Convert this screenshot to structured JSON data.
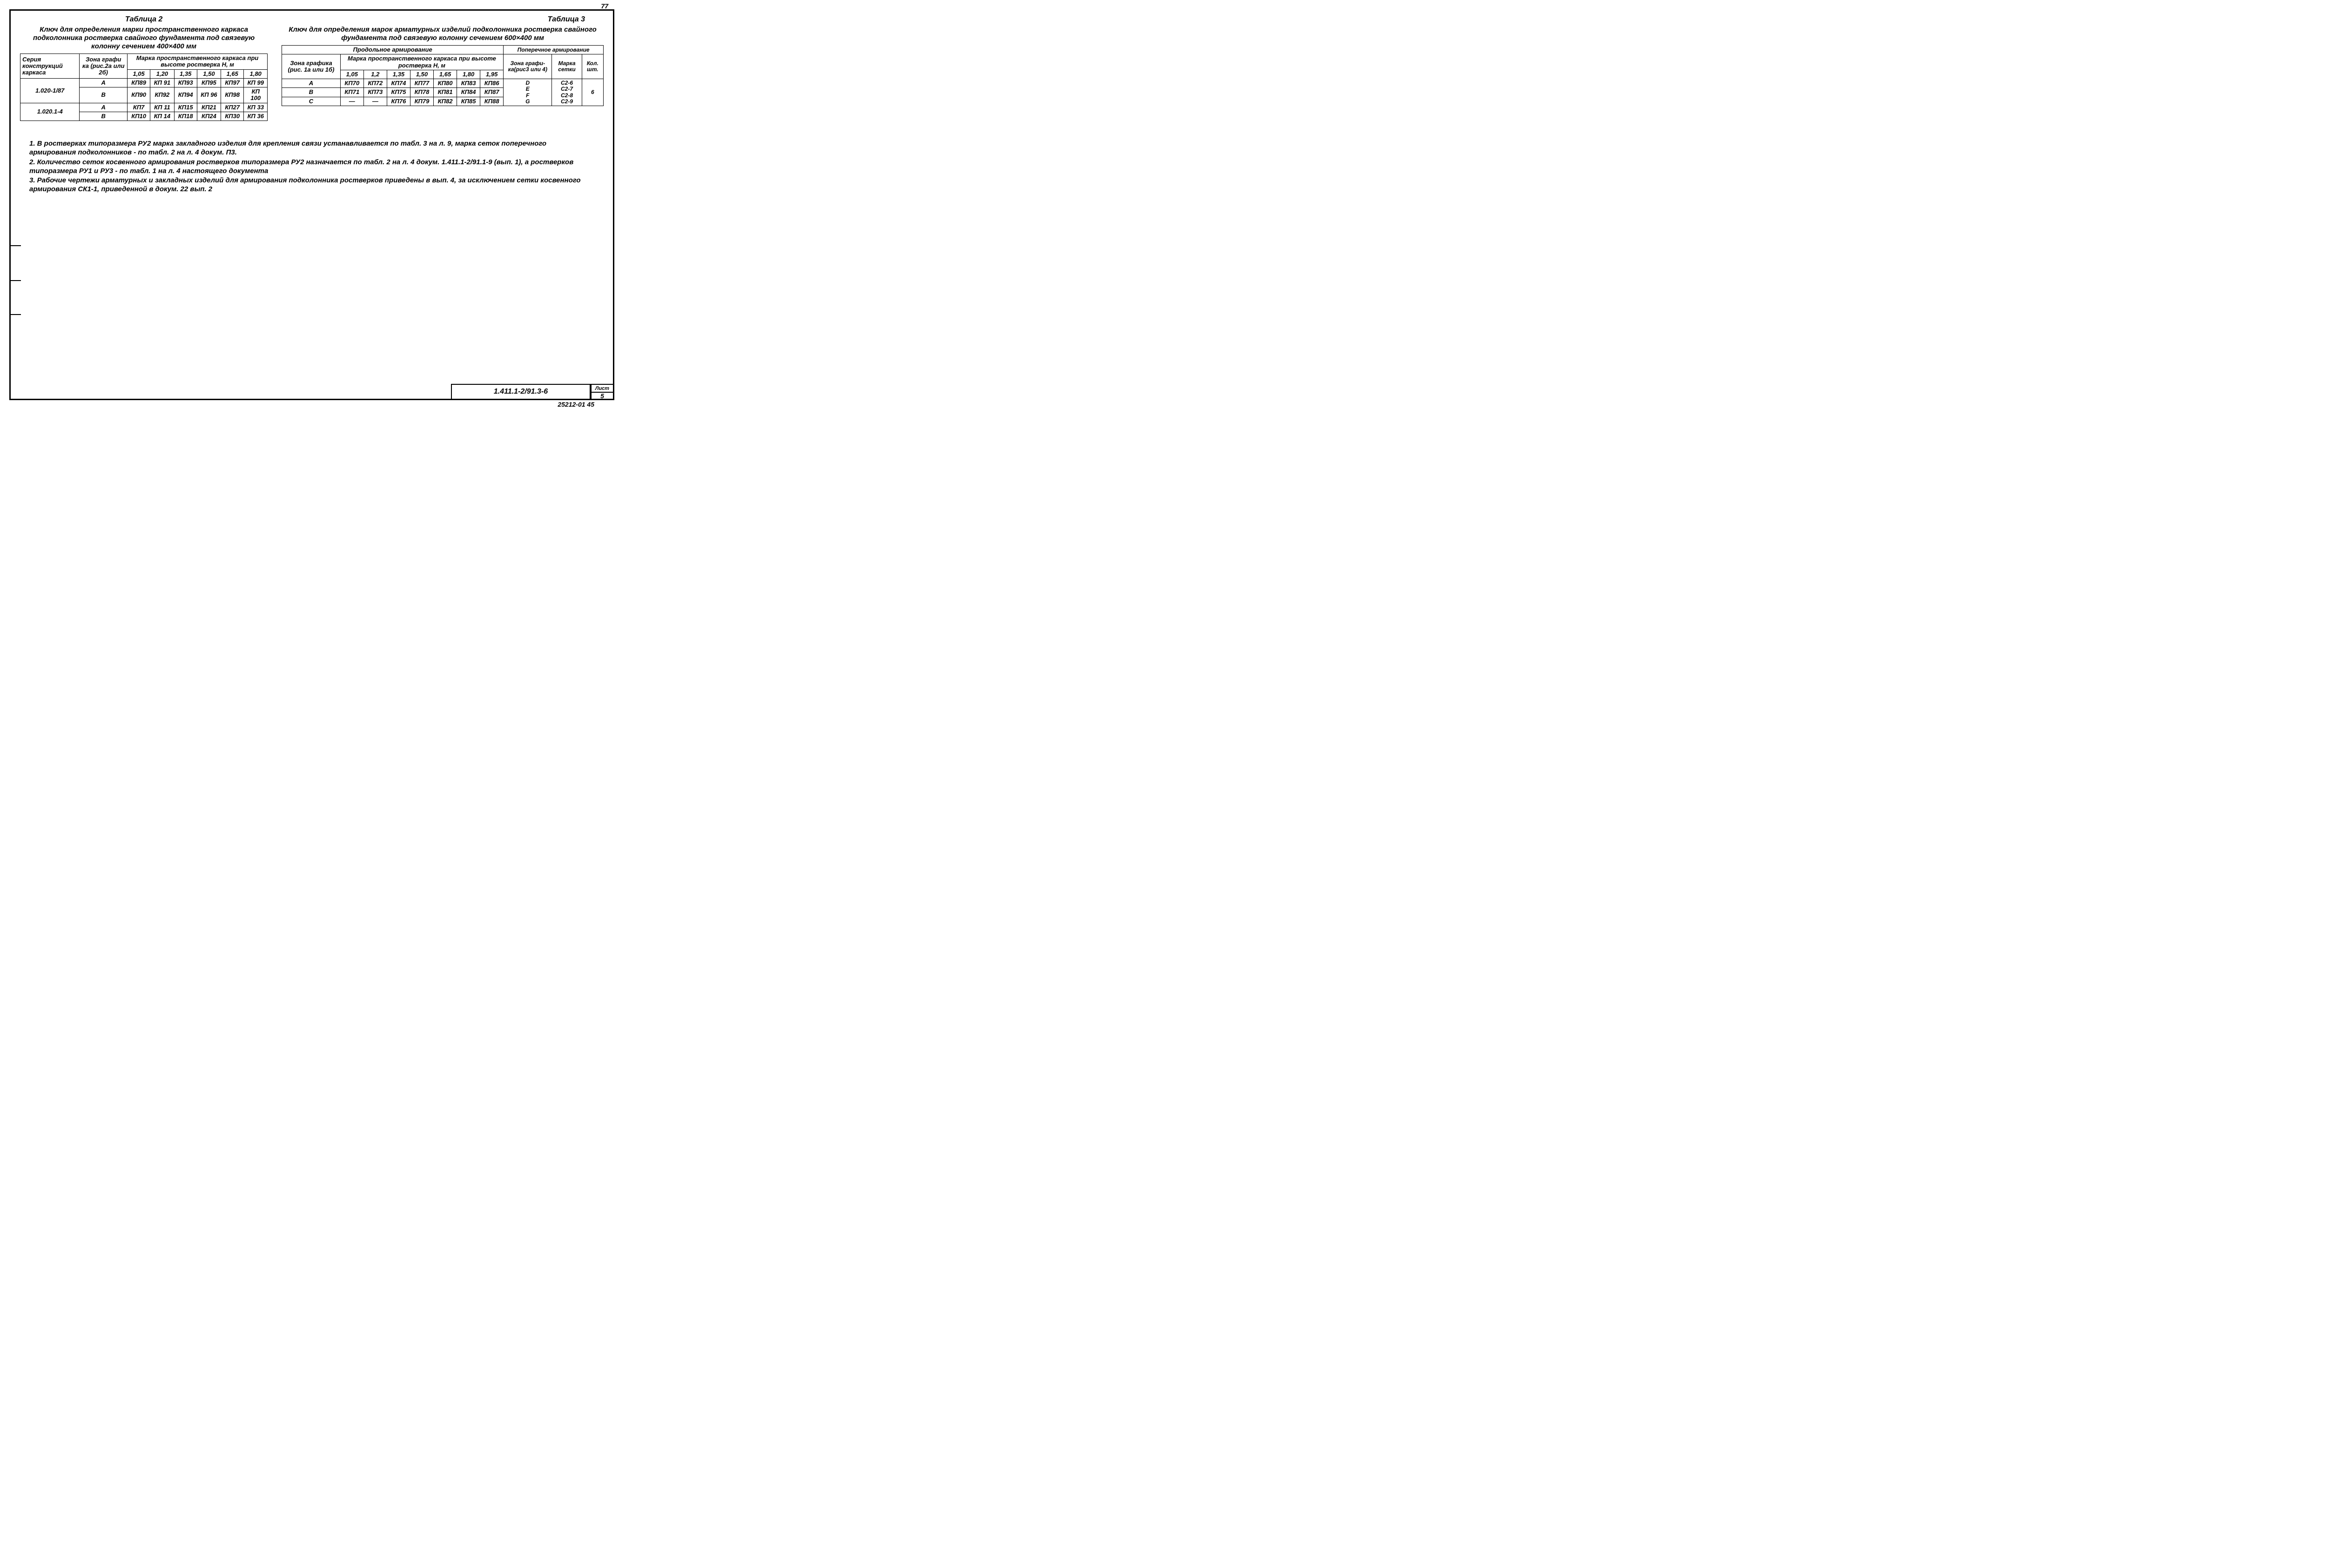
{
  "page_number_top": "77",
  "table2": {
    "title": "Таблица 2",
    "caption": "Ключ для определения марки пространственного каркаса подколонника ростверка свайного фундамента под связевую колонну сечением 400×400 мм",
    "col_series": "Серия конструкций каркаса",
    "col_zone": "Зона графи ка (рис.2а или 2б)",
    "col_mark_header": "Марка пространственного каркаса при высоте ростверка H, м",
    "heights": [
      "1,05",
      "1,20",
      "1,35",
      "1,50",
      "1,65",
      "1,80"
    ],
    "rows": [
      {
        "series": "1.020-1/87",
        "zone": "А",
        "cells": [
          "КП89",
          "КП 91",
          "КП93",
          "КП95",
          "КП97",
          "КП 99"
        ]
      },
      {
        "series": "",
        "zone": "В",
        "cells": [
          "КП90",
          "КП92",
          "КП94",
          "КП 96",
          "КП98",
          "КП 100"
        ]
      },
      {
        "series": "1.020.1-4",
        "zone": "А",
        "cells": [
          "КП7",
          "КП 11",
          "КП15",
          "КП21",
          "КП27",
          "КП 33"
        ]
      },
      {
        "series": "",
        "zone": "В",
        "cells": [
          "КП10",
          "КП 14",
          "КП18",
          "КП24",
          "КП30",
          "КП 36"
        ]
      }
    ]
  },
  "table3": {
    "title": "Таблица 3",
    "caption": "Ключ для определения марок арматурных изделий подколонника ростверка свайного фундамента под связевую колонну сечением 600×400 мм",
    "long_header": "Продольное армирование",
    "trans_header": "Поперечное армирование",
    "col_zone": "Зона графика (рис. 1а или 1б)",
    "col_mark_header": "Марка пространственного каркаса при высоте ростверка H, м",
    "heights": [
      "1,05",
      "1,2",
      "1,35",
      "1,50",
      "1,65",
      "1,80",
      "1,95"
    ],
    "col_zone_r": "Зона графи-ка(рис3 или 4)",
    "col_mesh": "Марка сетки",
    "col_qty": "Кол. шт.",
    "rows": [
      {
        "zone": "А",
        "cells": [
          "КП70",
          "КП72",
          "КП74",
          "КП77",
          "КП80",
          "КП83",
          "КП86"
        ]
      },
      {
        "zone": "В",
        "cells": [
          "КП71",
          "КП73",
          "КП75",
          "КП78",
          "КП81",
          "КП84",
          "КП87"
        ]
      },
      {
        "zone": "С",
        "cells": [
          "—",
          "—",
          "КП76",
          "КП79",
          "КП82",
          "КП85",
          "КП88"
        ]
      }
    ],
    "right_zones": "D\nE\nF\nG",
    "right_meshes": "С2-6\nС2-7\nС2-8\nС2-9",
    "right_qty": "6"
  },
  "notes": {
    "n1": "1. В ростверках типоразмера РУ2 марка закладного изделия для крепления связи устанавливается по табл. 3 на л. 9, марка сеток поперечного армирования подколонников - по табл. 2 на л. 4 докум. П3.",
    "n2": "2. Количество сеток косвенного армирования ростверков типоразмера РУ2 назначается по табл. 2 на л. 4 докум. 1.411.1-2/91.1-9 (вып. 1), а ростверков типоразмера РУ1 и РУ3 - по табл. 1 на л. 4 настоящего документа",
    "n3": "3. Рабочие чертежи арматурных и закладных изделий для армирования подколонника ростверков приведены в вып. 4, за исключением сетки косвенного армирования СК1-1, приведенной в докум. 22 вып. 2"
  },
  "titleblock": {
    "doc": "1.411.1-2/91.3-6",
    "sheet_label": "Лист",
    "sheet_num": "5"
  },
  "footer_code": "25212-01 45"
}
